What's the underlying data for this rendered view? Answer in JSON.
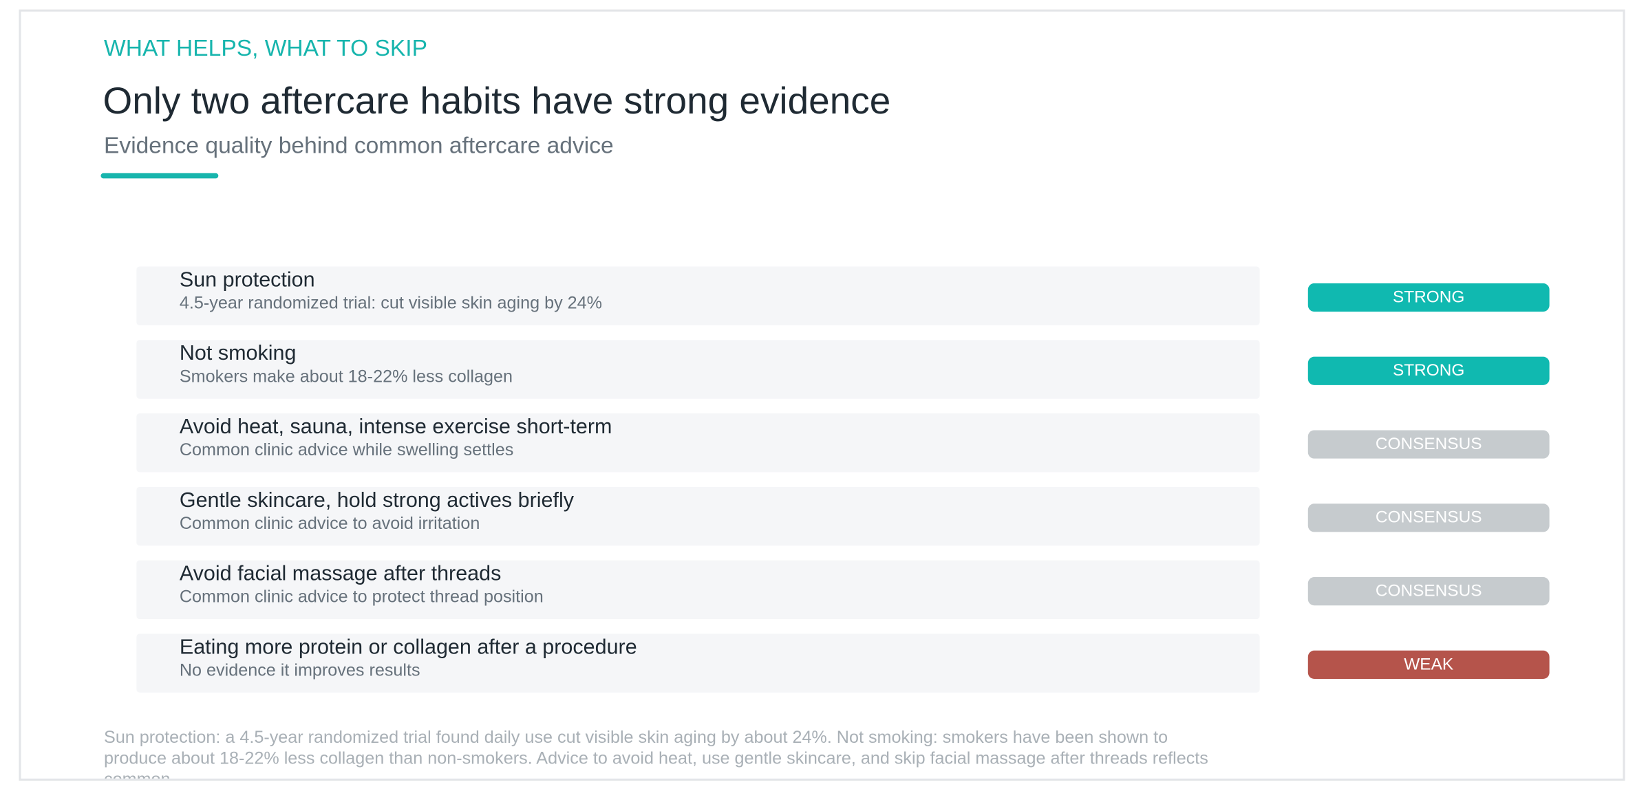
{
  "header": {
    "eyebrow": "WHAT HELPS, WHAT TO SKIP",
    "title": "Only two aftercare habits have strong evidence",
    "subtitle": "Evidence quality behind common aftercare advice"
  },
  "items": [
    {
      "title": "Sun protection",
      "detail": "4.5-year randomized trial: cut visible skin aging by 24%",
      "badge": "STRONG",
      "level": "strong"
    },
    {
      "title": "Not smoking",
      "detail": "Smokers make about 18-22% less collagen",
      "badge": "STRONG",
      "level": "strong"
    },
    {
      "title": "Avoid heat, sauna, intense exercise short-term",
      "detail": "Common clinic advice while swelling settles",
      "badge": "CONSENSUS",
      "level": "consensus"
    },
    {
      "title": "Gentle skincare, hold strong actives briefly",
      "detail": "Common clinic advice to avoid irritation",
      "badge": "CONSENSUS",
      "level": "consensus"
    },
    {
      "title": "Avoid facial massage after threads",
      "detail": "Common clinic advice to protect thread position",
      "badge": "CONSENSUS",
      "level": "consensus"
    },
    {
      "title": "Eating more protein or collagen after a procedure",
      "detail": "No evidence it improves results",
      "badge": "WEAK",
      "level": "weak"
    }
  ],
  "footnote": "Sun protection: a 4.5-year randomized trial found daily use cut visible skin aging by about 24%. Not smoking: smokers have been shown to produce about 18-22% less collagen than non-smokers. Advice to avoid heat, use gentle skincare, and skip facial massage after threads reflects common"
}
